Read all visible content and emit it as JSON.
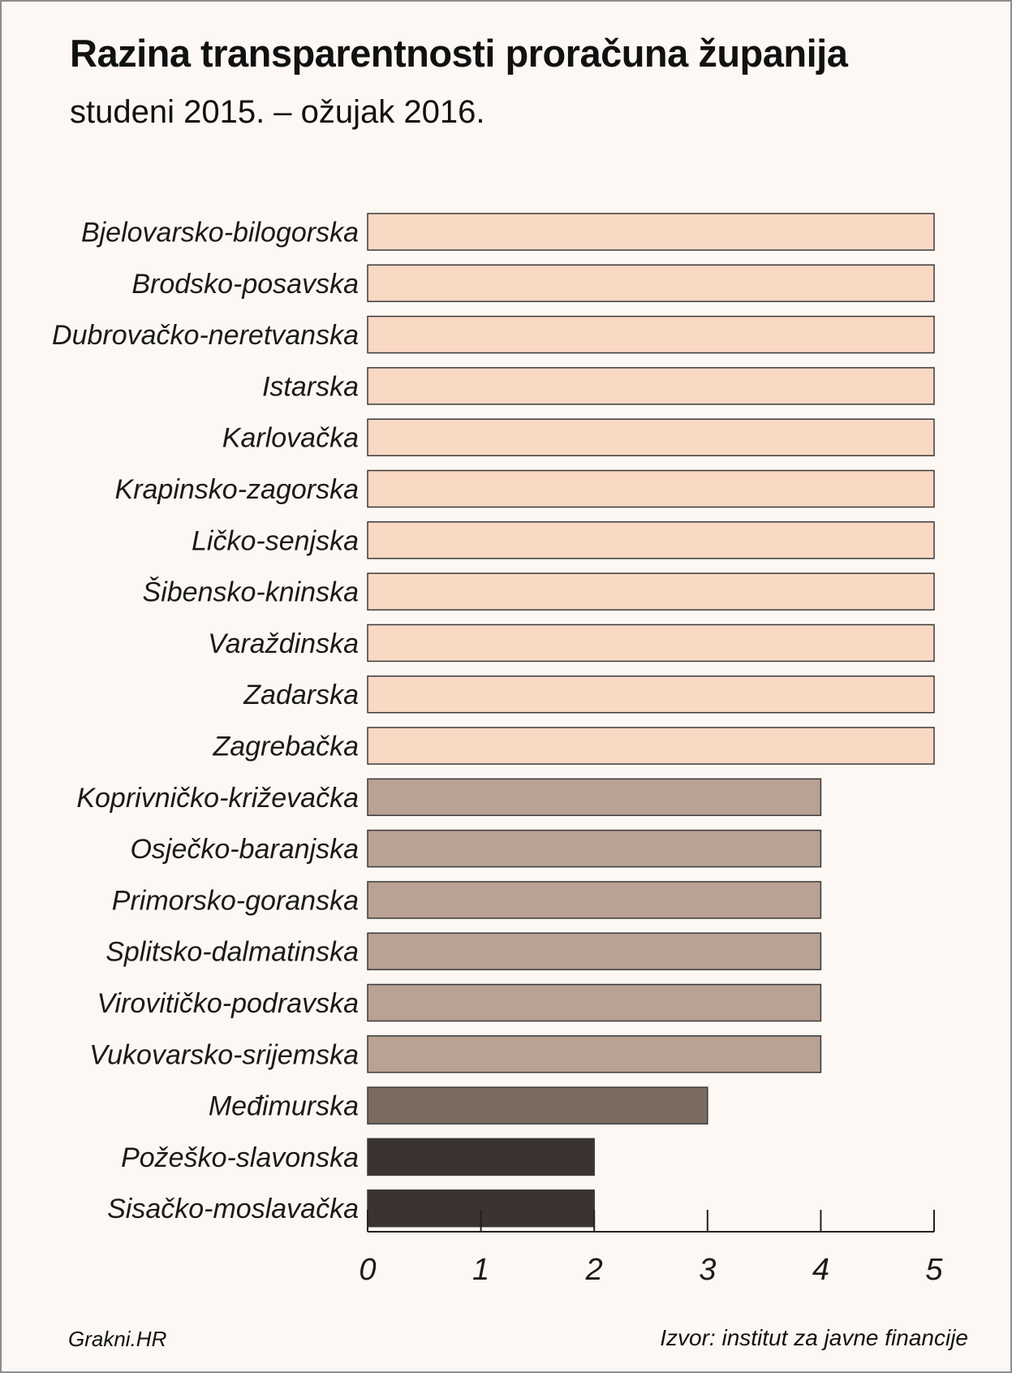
{
  "colors": {
    "background": "#fdf8f3",
    "level_5": "#f9d8c4",
    "level_4": "#b9a194",
    "level_3": "#7c6b61",
    "level_2": "#3b3330",
    "outline": "#3a3a3a"
  },
  "footer": {
    "left": "Grakni.HR",
    "right": "Izvor: institut za javne financije"
  },
  "chart_data": {
    "type": "bar",
    "orientation": "horizontal",
    "title": "Razina transparentnosti proračuna županija",
    "subtitle": "studeni 2015. – ožujak 2016.",
    "xlabel": "",
    "ylabel": "",
    "xlim": [
      0,
      5
    ],
    "ticks": [
      "0",
      "1",
      "2",
      "3",
      "4",
      "5"
    ],
    "grid": false,
    "categories": [
      "Bjelovarsko-bilogorska",
      "Brodsko-posavska",
      "Dubrovačko-neretvanska",
      "Istarska",
      "Karlovačka",
      "Krapinsko-zagorska",
      "Ličko-senjska",
      "Šibensko-kninska",
      "Varaždinska",
      "Zadarska",
      "Zagrebačka",
      "Koprivničko-križevačka",
      "Osječko-baranjska",
      "Primorsko-goranska",
      "Splitsko-dalmatinska",
      "Virovitičko-podravska",
      "Vukovarsko-srijemska",
      "Međimurska",
      "Požeško-slavonska",
      "Sisačko-moslavačka"
    ],
    "values": [
      5,
      5,
      5,
      5,
      5,
      5,
      5,
      5,
      5,
      5,
      5,
      4,
      4,
      4,
      4,
      4,
      4,
      3,
      2,
      2
    ]
  }
}
